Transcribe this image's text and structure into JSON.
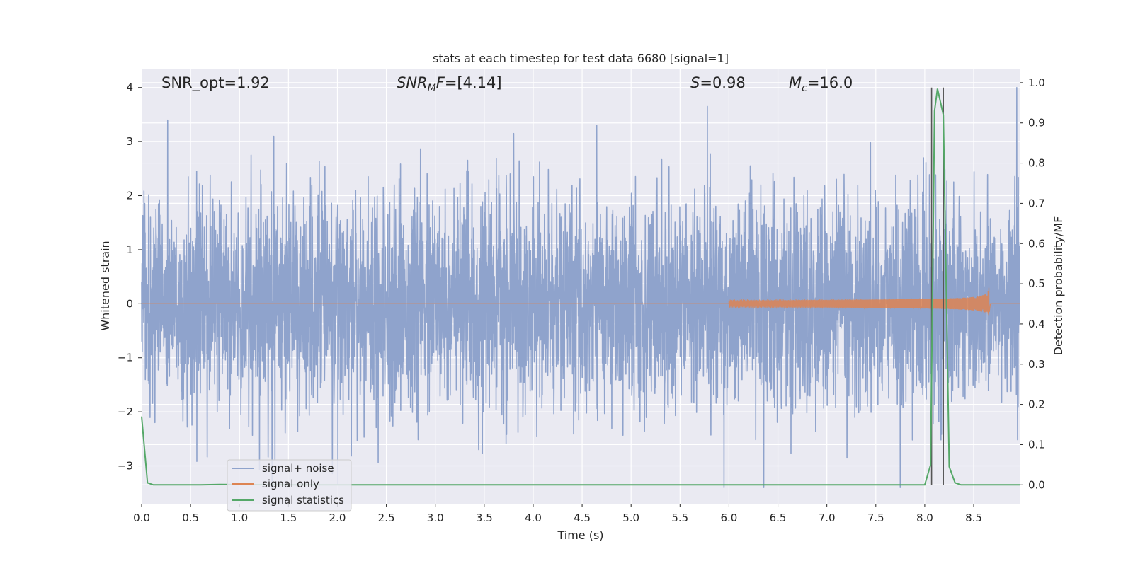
{
  "chart_data": {
    "type": "line",
    "title": "stats at each timestep for test data 6680 [signal=1]",
    "xlabel": "Time (s)",
    "ylabel": "Whitened strain",
    "y2label": "Detection probability/MF",
    "xlim": [
      0.0,
      8.97
    ],
    "ylim": [
      -3.7,
      4.35
    ],
    "y2lim": [
      -0.047,
      1.035
    ],
    "x_ticks": [
      "0.0",
      "0.5",
      "1.0",
      "1.5",
      "2.0",
      "2.5",
      "3.0",
      "3.5",
      "4.0",
      "4.5",
      "5.0",
      "5.5",
      "6.0",
      "6.5",
      "7.0",
      "7.5",
      "8.0",
      "8.5"
    ],
    "y_ticks": [
      "−3",
      "−2",
      "−1",
      "0",
      "1",
      "2",
      "3",
      "4"
    ],
    "y2_ticks": [
      "0.0",
      "0.1",
      "0.2",
      "0.3",
      "0.4",
      "0.5",
      "0.6",
      "0.7",
      "0.8",
      "0.9",
      "1.0"
    ],
    "grid": true,
    "legend_position": "lower-left",
    "annotations": {
      "snr_opt": "SNR_opt=1.92",
      "snr_mf_base": "SNR",
      "snr_mf_sub": "M",
      "snr_mf_italic": "F",
      "snr_mf_value": "=[4.14]",
      "s_symbol": "S",
      "s_value": "=0.98",
      "mc_base": "M",
      "mc_sub": "c",
      "mc_value": "=16.0"
    },
    "vertical_lines_x": [
      8.07,
      8.19
    ],
    "series": [
      {
        "name": "signal+ noise",
        "color": "#8fa3cc",
        "description_kind": "noise",
        "sample_rate_hz": 500,
        "approx_std": 0.95,
        "approx_range": [
          -3.4,
          4.0
        ],
        "notable_peaks": [
          [
            1.35,
            3.1
          ],
          [
            3.8,
            3.15
          ],
          [
            4.65,
            3.3
          ],
          [
            5.78,
            3.65
          ],
          [
            8.94,
            4.0
          ],
          [
            5.95,
            -3.4
          ],
          [
            7.75,
            -3.4
          ]
        ]
      },
      {
        "name": "signal only",
        "color": "#dd8452",
        "description_kind": "chirp",
        "start": 6.0,
        "merger_time": 8.66,
        "peak_amplitude": 0.32
      },
      {
        "name": "signal statistics",
        "color": "#55a868",
        "axis": "right",
        "x": [
          0.0,
          0.06,
          0.12,
          0.3,
          0.6,
          0.8,
          1.5,
          2.5,
          3.5,
          4.5,
          5.5,
          6.5,
          7.5,
          8.0,
          8.06,
          8.1,
          8.13,
          8.19,
          8.25,
          8.31,
          8.37,
          8.5,
          8.97
        ],
        "y": [
          0.17,
          0.005,
          0.0,
          0.0,
          0.0,
          0.001,
          0.0,
          0.0,
          0.0,
          0.0,
          0.0,
          0.0,
          0.0,
          0.0,
          0.05,
          0.93,
          0.985,
          0.92,
          0.045,
          0.005,
          0.0,
          0.0,
          0.0
        ]
      }
    ]
  }
}
